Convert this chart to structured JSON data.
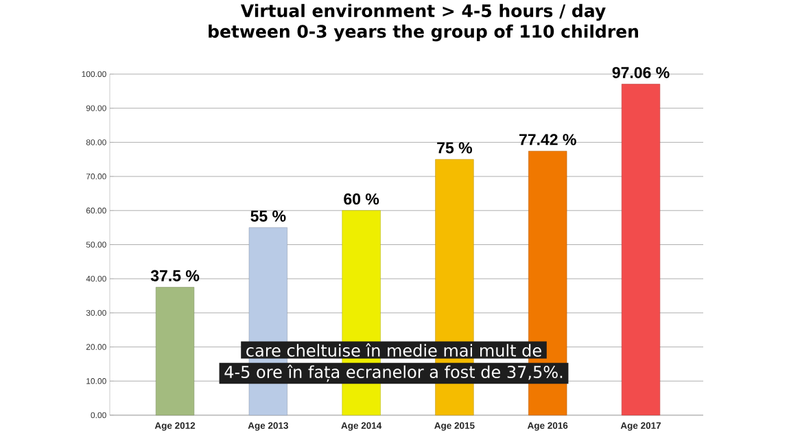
{
  "chart_data": {
    "type": "bar",
    "title": "Virtual environment > 4-5 hours / day",
    "subtitle": "between 0-3 years the group of 110 children",
    "categories": [
      "Age 2012",
      "Age 2013",
      "Age 2014",
      "Age 2015",
      "Age 2016",
      "Age 2017"
    ],
    "values": [
      37.5,
      55,
      60,
      75,
      77.42,
      97.06
    ],
    "colors": [
      "#a3bb7f",
      "#b9cbe6",
      "#eeee00",
      "#f5bc00",
      "#f07800",
      "#f24c4c"
    ],
    "value_labels": [
      "37.5 %",
      "55 %",
      "60 %",
      "75 %",
      "77.42 %",
      "97.06 %"
    ],
    "ylim": [
      0,
      100
    ],
    "yticks": [
      {
        "value": 0,
        "label": "0.00"
      },
      {
        "value": 10,
        "label": "10.00"
      },
      {
        "value": 20,
        "label": "20.00"
      },
      {
        "value": 30,
        "label": "30.00"
      },
      {
        "value": 40,
        "label": "40.00"
      },
      {
        "value": 50,
        "label": "50.00"
      },
      {
        "value": 60,
        "label": "60.00"
      },
      {
        "value": 70,
        "label": "70.00"
      },
      {
        "value": 80,
        "label": "80.00"
      },
      {
        "value": 90,
        "label": "90.00"
      },
      {
        "value": 100,
        "label": "100.00"
      }
    ],
    "grid": "y",
    "annotations": [
      "care cheltuise în medie mai mult de",
      "4-5 ore în fața ecranelor a fost de 37,5%."
    ]
  }
}
